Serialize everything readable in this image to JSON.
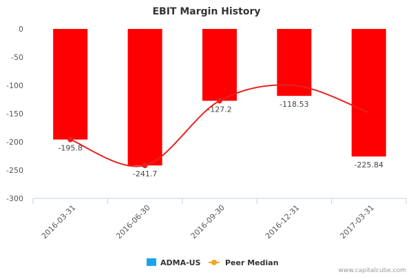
{
  "chart_data": {
    "type": "bar",
    "title": "EBIT Margin History",
    "categories": [
      "2016-03-31",
      "2016-06-30",
      "2016-09-30",
      "2016-12-31",
      "2017-03-31"
    ],
    "series": [
      {
        "name": "ADMA-US",
        "kind": "bar",
        "color": "#ff0000",
        "values": [
          -195.8,
          -241.7,
          -127.2,
          -118.53,
          -225.84
        ]
      },
      {
        "name": "Peer Median",
        "kind": "line",
        "color": "#e8201f",
        "values": [
          -195.8,
          -241.7,
          -127.2,
          -100,
          -148
        ]
      }
    ],
    "data_labels": [
      "-195.8",
      "-241.7",
      "-127.2",
      "-118.53",
      "-225.84"
    ],
    "ylim": [
      -300,
      0
    ],
    "yticks": [
      0,
      -50,
      -100,
      -150,
      -200,
      -250,
      -300
    ],
    "legend": {
      "position": "bottom",
      "items": [
        {
          "label": "ADMA-US",
          "color": "#1aa3ee",
          "marker": "square"
        },
        {
          "label": "Peer Median",
          "color": "#f5a623",
          "marker": "line-dot"
        }
      ]
    },
    "credit": "www.capitalcube.com"
  }
}
